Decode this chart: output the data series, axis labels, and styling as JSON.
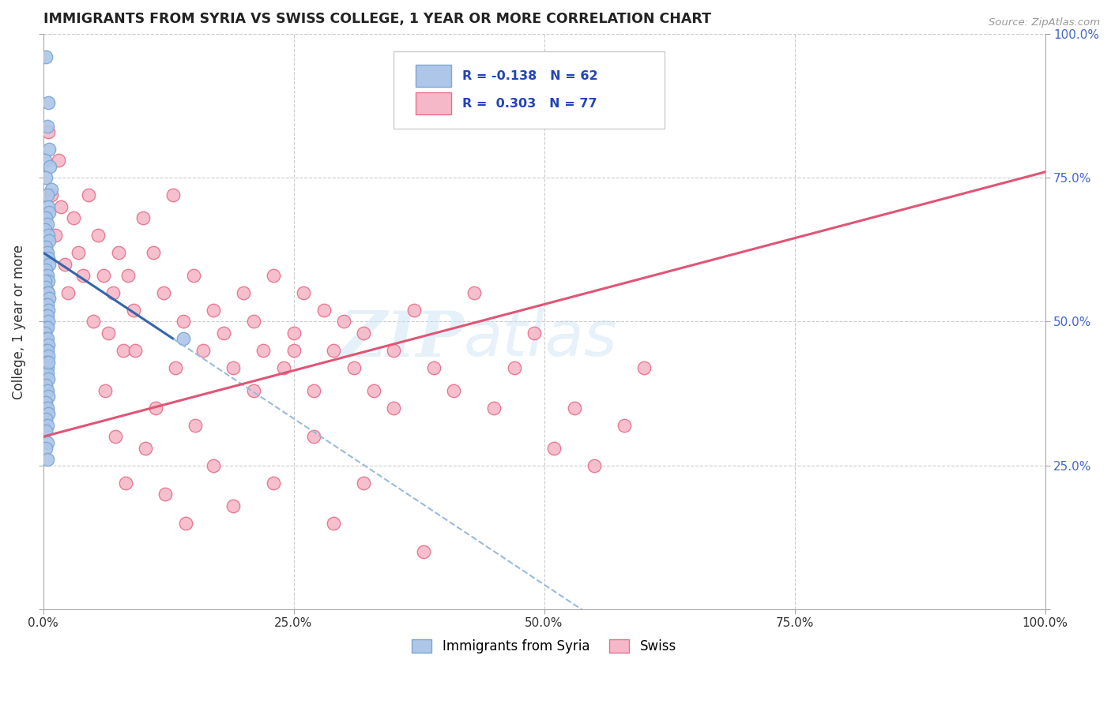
{
  "title": "IMMIGRANTS FROM SYRIA VS SWISS COLLEGE, 1 YEAR OR MORE CORRELATION CHART",
  "source_text": "Source: ZipAtlas.com",
  "ylabel": "College, 1 year or more",
  "xlim": [
    0,
    1
  ],
  "ylim": [
    0,
    1
  ],
  "xticks": [
    0,
    0.25,
    0.5,
    0.75,
    1.0
  ],
  "yticks": [
    0,
    0.25,
    0.5,
    0.75,
    1.0
  ],
  "xticklabels": [
    "0.0%",
    "25.0%",
    "50.0%",
    "75.0%",
    "100.0%"
  ],
  "right_yticklabels": [
    "",
    "25.0%",
    "50.0%",
    "75.0%",
    "100.0%"
  ],
  "legend_labels": [
    "Immigrants from Syria",
    "Swiss"
  ],
  "blue_color": "#aec6e8",
  "pink_color": "#f5b8c8",
  "blue_edge": "#7ba7d4",
  "pink_edge": "#e8708a",
  "blue_line_color": "#3366aa",
  "blue_dash_color": "#99bbdd",
  "pink_line_color": "#e05575",
  "R_blue": -0.138,
  "N_blue": 62,
  "R_pink": 0.303,
  "N_pink": 77,
  "watermark_zip": "ZIP",
  "watermark_atlas": "atlas",
  "grid_color": "#cccccc",
  "background_color": "#ffffff",
  "blue_line_x0": 0.0,
  "blue_line_y0": 0.62,
  "blue_line_x1": 0.13,
  "blue_line_y1": 0.47,
  "pink_line_x0": 0.0,
  "pink_line_y0": 0.3,
  "pink_line_x1": 1.0,
  "pink_line_y1": 0.76,
  "blue_scatter_x": [
    0.003,
    0.005,
    0.004,
    0.006,
    0.002,
    0.007,
    0.003,
    0.008,
    0.004,
    0.005,
    0.006,
    0.003,
    0.004,
    0.002,
    0.005,
    0.006,
    0.003,
    0.004,
    0.005,
    0.006,
    0.003,
    0.004,
    0.005,
    0.002,
    0.003,
    0.004,
    0.005,
    0.006,
    0.003,
    0.004,
    0.005,
    0.003,
    0.004,
    0.005,
    0.003,
    0.004,
    0.002,
    0.003,
    0.004,
    0.005,
    0.003,
    0.004,
    0.005,
    0.003,
    0.004,
    0.003,
    0.004,
    0.005,
    0.003,
    0.004,
    0.005,
    0.003,
    0.004,
    0.005,
    0.003,
    0.004,
    0.003,
    0.004,
    0.003,
    0.004,
    0.14,
    0.005
  ],
  "blue_scatter_y": [
    0.96,
    0.88,
    0.84,
    0.8,
    0.78,
    0.77,
    0.75,
    0.73,
    0.72,
    0.7,
    0.69,
    0.68,
    0.67,
    0.66,
    0.65,
    0.64,
    0.63,
    0.62,
    0.61,
    0.6,
    0.59,
    0.58,
    0.57,
    0.57,
    0.56,
    0.55,
    0.55,
    0.54,
    0.53,
    0.53,
    0.52,
    0.51,
    0.51,
    0.5,
    0.49,
    0.49,
    0.48,
    0.47,
    0.47,
    0.46,
    0.45,
    0.45,
    0.44,
    0.43,
    0.42,
    0.41,
    0.41,
    0.4,
    0.39,
    0.38,
    0.37,
    0.36,
    0.35,
    0.34,
    0.33,
    0.32,
    0.31,
    0.29,
    0.28,
    0.26,
    0.47,
    0.43
  ],
  "pink_scatter_x": [
    0.005,
    0.008,
    0.012,
    0.015,
    0.018,
    0.022,
    0.025,
    0.03,
    0.035,
    0.04,
    0.045,
    0.05,
    0.055,
    0.06,
    0.065,
    0.07,
    0.075,
    0.08,
    0.085,
    0.09,
    0.1,
    0.11,
    0.12,
    0.13,
    0.14,
    0.15,
    0.16,
    0.17,
    0.18,
    0.19,
    0.2,
    0.21,
    0.22,
    0.23,
    0.24,
    0.25,
    0.26,
    0.27,
    0.28,
    0.29,
    0.3,
    0.31,
    0.32,
    0.33,
    0.35,
    0.37,
    0.39,
    0.41,
    0.43,
    0.45,
    0.47,
    0.49,
    0.51,
    0.53,
    0.55,
    0.58,
    0.6,
    0.062,
    0.072,
    0.082,
    0.092,
    0.102,
    0.112,
    0.122,
    0.132,
    0.142,
    0.152,
    0.17,
    0.19,
    0.21,
    0.23,
    0.25,
    0.27,
    0.29,
    0.32,
    0.35,
    0.38
  ],
  "pink_scatter_y": [
    0.83,
    0.72,
    0.65,
    0.78,
    0.7,
    0.6,
    0.55,
    0.68,
    0.62,
    0.58,
    0.72,
    0.5,
    0.65,
    0.58,
    0.48,
    0.55,
    0.62,
    0.45,
    0.58,
    0.52,
    0.68,
    0.62,
    0.55,
    0.72,
    0.5,
    0.58,
    0.45,
    0.52,
    0.48,
    0.42,
    0.55,
    0.5,
    0.45,
    0.58,
    0.42,
    0.48,
    0.55,
    0.38,
    0.52,
    0.45,
    0.5,
    0.42,
    0.48,
    0.38,
    0.45,
    0.52,
    0.42,
    0.38,
    0.55,
    0.35,
    0.42,
    0.48,
    0.28,
    0.35,
    0.25,
    0.32,
    0.42,
    0.38,
    0.3,
    0.22,
    0.45,
    0.28,
    0.35,
    0.2,
    0.42,
    0.15,
    0.32,
    0.25,
    0.18,
    0.38,
    0.22,
    0.45,
    0.3,
    0.15,
    0.22,
    0.35,
    0.1
  ]
}
